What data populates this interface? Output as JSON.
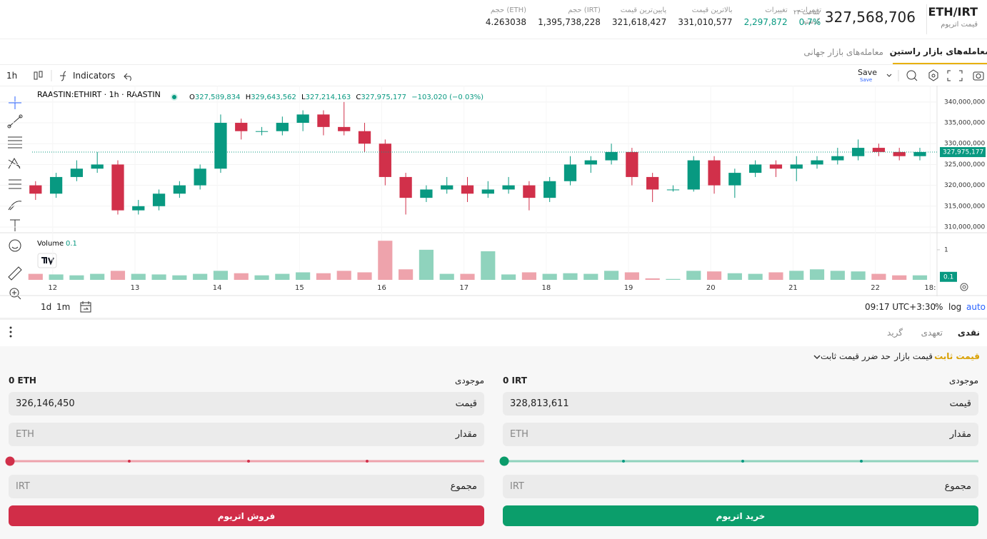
{
  "header": {
    "pair": "ETH/IRT",
    "pair_name": "قیمت اتریوم",
    "last_price": "327,568,706",
    "period": [
      "۲۴ ساعت",
      "گذشته"
    ],
    "stats": [
      {
        "label": "تغییرات",
        "value": "0.7%"
      },
      {
        "label": "تغییرات",
        "value": "2,297,872"
      },
      {
        "label": "بالاترین قیمت",
        "value": "331,010,577"
      },
      {
        "label": "پایین‌ترین قیمت",
        "value": "321,618,427"
      },
      {
        "label": "حجم (IRT)",
        "value": "1,395,738,228"
      },
      {
        "label": "حجم (ETH)",
        "value": "4.263038"
      }
    ]
  },
  "tabs": [
    "معامله‌های بازار راستین",
    "معامله‌های بازار جهانی"
  ],
  "toolbar": {
    "interval": "1h",
    "indicators": "Indicators",
    "save": "Save",
    "save_sub": "Save"
  },
  "legend": {
    "symbol": "RAASTIN:ETHIRT · 1h · RAASTIN",
    "items": [
      {
        "label": "O",
        "value": "327,589,834"
      },
      {
        "label": "H",
        "value": "329,643,562"
      },
      {
        "label": "L",
        "value": "327,214,163"
      },
      {
        "label": "C",
        "value": "327,975,177"
      }
    ],
    "change": "−103,020 (−0.03%)",
    "volume": "Volume",
    "volume_value": "0.1"
  },
  "bottom_bar": {
    "ranges": [
      "1d",
      "1m"
    ],
    "time": "09:17 UTC+3:30",
    "percent": "%",
    "log": "log",
    "auto": "auto"
  },
  "chart_data": {
    "type": "candlestick",
    "x": [
      -5,
      1,
      7,
      13,
      19,
      25,
      31,
      37,
      43,
      49,
      55,
      61,
      67,
      73,
      79,
      85,
      91,
      97,
      103,
      109,
      115,
      121,
      127,
      133,
      139,
      145,
      151,
      157,
      163,
      169,
      175,
      181,
      187,
      193,
      199,
      205,
      211,
      217,
      223,
      229,
      235,
      241,
      247,
      253
    ],
    "open": [
      320000000,
      318000000,
      322000000,
      324000000,
      325000000,
      314000000,
      315000000,
      318000000,
      320000000,
      324000000,
      335000000,
      333000000,
      333000000,
      335000000,
      337000000,
      334000000,
      333000000,
      330000000,
      322000000,
      317000000,
      319000000,
      320000000,
      318000000,
      319000000,
      320000000,
      317000000,
      321000000,
      325000000,
      326000000,
      328000000,
      322000000,
      319000000,
      319000000,
      326000000,
      320000000,
      323000000,
      325000000,
      324000000,
      325000000,
      326000000,
      327000000,
      329000000,
      328000000,
      327000000
    ],
    "high": [
      321000000,
      323000000,
      326000000,
      328000000,
      326000000,
      316500000,
      319000000,
      321000000,
      325000000,
      337000000,
      336000000,
      334000000,
      336500000,
      338000000,
      338000000,
      340000000,
      335000000,
      331000000,
      323000000,
      320000000,
      322000000,
      322000000,
      321000000,
      322000000,
      321000000,
      322000000,
      327000000,
      327000000,
      330000000,
      329000000,
      323000000,
      320000000,
      327000000,
      327000000,
      324000000,
      326000000,
      326000000,
      327000000,
      327000000,
      329000000,
      331000000,
      330000000,
      329000000,
      329000000
    ],
    "low": [
      316500000,
      317000000,
      321000000,
      323000000,
      313000000,
      313000000,
      314000000,
      317000000,
      319000000,
      323000000,
      331000000,
      332000000,
      332000000,
      333000000,
      332000000,
      332000000,
      328000000,
      320000000,
      313000000,
      316000000,
      318000000,
      316000000,
      317000000,
      318000000,
      314000000,
      316000000,
      320000000,
      323000000,
      325000000,
      320000000,
      316000000,
      318500000,
      318500000,
      318000000,
      317000000,
      322000000,
      322000000,
      321000000,
      324000000,
      325000000,
      326000000,
      327000000,
      326000000,
      326000000
    ],
    "close": [
      318000000,
      322000000,
      324000000,
      325000000,
      314000000,
      315000000,
      318000000,
      320000000,
      324000000,
      335000000,
      333000000,
      333000000,
      335000000,
      337000000,
      334000000,
      333000000,
      330000000,
      322000000,
      317000000,
      319000000,
      320000000,
      318000000,
      319000000,
      320000000,
      317000000,
      321000000,
      325000000,
      326000000,
      328000000,
      322000000,
      319000000,
      319000000,
      326000000,
      320000000,
      323000000,
      325000000,
      324000000,
      325000000,
      326000000,
      327000000,
      329000000,
      328000000,
      327000000,
      328000000
    ],
    "volume": [
      0.2,
      0.18,
      0.15,
      0.2,
      0.3,
      0.2,
      0.18,
      0.15,
      0.2,
      0.3,
      0.22,
      0.15,
      0.2,
      0.25,
      0.22,
      0.3,
      0.25,
      1.3,
      0.35,
      1.0,
      0.2,
      0.2,
      0.95,
      0.18,
      0.25,
      0.2,
      0.22,
      0.2,
      0.3,
      0.25,
      0.05,
      0.03,
      0.3,
      0.28,
      0.22,
      0.2,
      0.25,
      0.3,
      0.35,
      0.3,
      0.28,
      0.2,
      0.15,
      0.15
    ],
    "xlim": [
      -6,
      258
    ],
    "xticks": [
      {
        "value": 0,
        "label": "12"
      },
      {
        "value": 24,
        "label": "13"
      },
      {
        "value": 48,
        "label": "14"
      },
      {
        "value": 72,
        "label": "15"
      },
      {
        "value": 96,
        "label": "16"
      },
      {
        "value": 120,
        "label": "17"
      },
      {
        "value": 144,
        "label": "18"
      },
      {
        "value": 168,
        "label": "19"
      },
      {
        "value": 192,
        "label": "20"
      },
      {
        "value": 216,
        "label": "21"
      },
      {
        "value": 240,
        "label": "22"
      },
      {
        "value": 256,
        "label": "18:"
      }
    ],
    "ylim": [
      308800000,
      342200000
    ],
    "yticks": [
      {
        "value": 310000000,
        "label": "310,000,000"
      },
      {
        "value": 315000000,
        "label": "315,000,000"
      },
      {
        "value": 320000000,
        "label": "320,000,000"
      },
      {
        "value": 325000000,
        "label": "325,000,000"
      },
      {
        "value": 330000000,
        "label": "330,000,000"
      },
      {
        "value": 335000000,
        "label": "335,000,000"
      },
      {
        "value": 340000000,
        "label": "340,000,000"
      }
    ],
    "volume_ylim": [
      0,
      1.4
    ],
    "volume_yticks": [
      1
    ],
    "last_price": {
      "value": 327975177,
      "label": "327,975,177"
    },
    "last_volume": 0.1,
    "up_color": "#089981",
    "down_color": "#d1304a",
    "volume_up_color": "#8fd3bd",
    "volume_down_color": "#eea3ac"
  },
  "order": {
    "tabs": [
      "نقدی",
      "تعهدی",
      "گرید"
    ],
    "types": [
      "قیمت ثابت",
      "قیمت بازار",
      "حد ضرر قیمت ثابت"
    ],
    "buy": {
      "balance_label": "موجودی",
      "balance": "0 IRT",
      "price_label": "قیمت",
      "price": "328,813,611",
      "amount_label": "مقدار",
      "amount_unit": "ETH",
      "total_label": "مجموع",
      "total_unit": "IRT",
      "button": "خرید اتریوم"
    },
    "sell": {
      "balance_label": "موجودی",
      "balance": "0 ETH",
      "price_label": "قیمت",
      "price": "326,146,450",
      "amount_label": "مقدار",
      "amount_unit": "ETH",
      "total_label": "مجموع",
      "total_unit": "IRT",
      "button": "فروش اتریوم"
    }
  }
}
